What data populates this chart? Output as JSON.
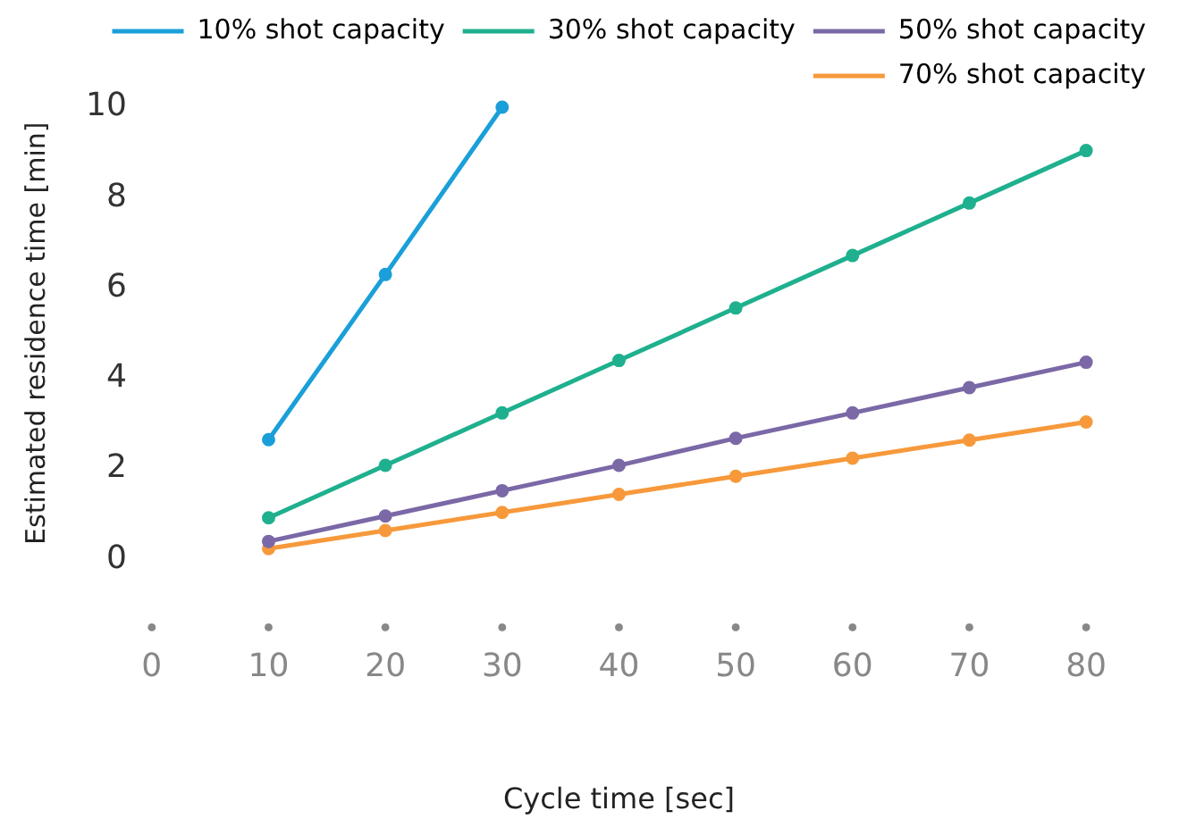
{
  "chart_data": {
    "type": "line",
    "xlabel": "Cycle time [sec]",
    "ylabel": "Estimated residence time [min]",
    "x": [
      10,
      20,
      30,
      40,
      50,
      60,
      70,
      80
    ],
    "series": [
      {
        "name": "10% shot capacity",
        "color": "#1a9fd9",
        "x": [
          10,
          20,
          30
        ],
        "values": [
          2.65,
          6.3,
          10
        ]
      },
      {
        "name": "30% shot capacity",
        "color": "#1fb08e",
        "values": [
          0.92,
          2.08,
          3.24,
          4.4,
          5.56,
          6.72,
          7.88,
          9.04
        ]
      },
      {
        "name": "50% shot capacity",
        "color": "#7b68a6",
        "values": [
          0.4,
          0.96,
          1.52,
          2.08,
          2.68,
          3.24,
          3.8,
          4.36
        ]
      },
      {
        "name": "70% shot capacity",
        "color": "#f7993b",
        "values": [
          0.24,
          0.64,
          1.04,
          1.44,
          1.84,
          2.24,
          2.64,
          3.04
        ]
      }
    ],
    "xlim": [
      0,
      80
    ],
    "xticks": [
      0,
      10,
      20,
      30,
      40,
      50,
      60,
      70,
      80
    ],
    "ylim": [
      0,
      10
    ],
    "yticks": [
      0,
      2,
      4,
      6,
      8,
      10
    ],
    "grid": false,
    "legend": "top right",
    "marker": "circle",
    "line_style": "solid"
  }
}
